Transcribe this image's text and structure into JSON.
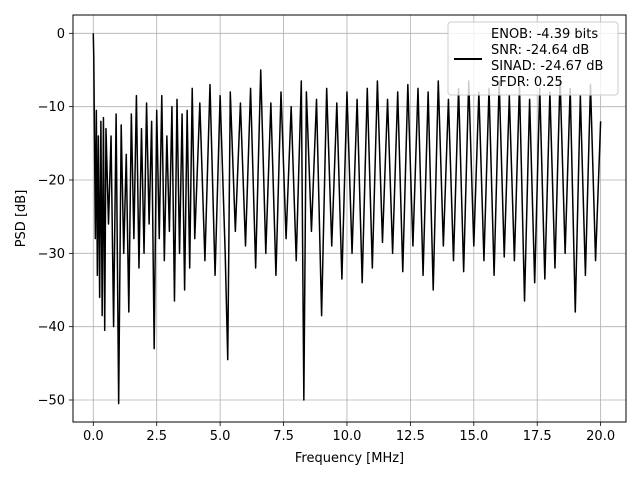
{
  "chart_data": {
    "type": "line",
    "title": "",
    "xlabel": "Frequency [MHz]",
    "ylabel": "PSD [dB]",
    "xlim": [
      -0.8,
      21.0
    ],
    "ylim": [
      -53.0,
      2.5
    ],
    "xticks": [
      0.0,
      2.5,
      5.0,
      7.5,
      10.0,
      12.5,
      15.0,
      17.5,
      20.0
    ],
    "xtick_labels": [
      "0.0",
      "2.5",
      "5.0",
      "7.5",
      "10.0",
      "12.5",
      "15.0",
      "17.5",
      "20.0"
    ],
    "yticks": [
      0,
      -10,
      -20,
      -30,
      -40,
      -50
    ],
    "ytick_labels": [
      "0",
      "−10",
      "−20",
      "−30",
      "−40",
      "−50"
    ],
    "grid": true,
    "legend_position": "top-right",
    "series": [
      {
        "name": "ENOB: -4.39 bits\nSNR: -24.64 dB\nSINAD: -24.67 dB\nSFDR: 0.25",
        "color": "#000000",
        "x": [
          0.0,
          0.02,
          0.05,
          0.08,
          0.12,
          0.16,
          0.2,
          0.25,
          0.3,
          0.35,
          0.4,
          0.45,
          0.5,
          0.6,
          0.7,
          0.8,
          0.9,
          1.0,
          1.1,
          1.2,
          1.3,
          1.4,
          1.5,
          1.6,
          1.7,
          1.8,
          1.9,
          2.0,
          2.1,
          2.2,
          2.3,
          2.4,
          2.5,
          2.6,
          2.7,
          2.8,
          2.9,
          3.0,
          3.1,
          3.2,
          3.3,
          3.4,
          3.5,
          3.6,
          3.7,
          3.8,
          3.9,
          4.0,
          4.2,
          4.4,
          4.6,
          4.8,
          5.0,
          5.2,
          5.3,
          5.4,
          5.6,
          5.8,
          6.0,
          6.2,
          6.4,
          6.6,
          6.8,
          7.0,
          7.2,
          7.4,
          7.6,
          7.8,
          8.0,
          8.2,
          8.3,
          8.4,
          8.6,
          8.8,
          9.0,
          9.2,
          9.4,
          9.6,
          9.8,
          10.0,
          10.2,
          10.4,
          10.6,
          10.8,
          11.0,
          11.2,
          11.4,
          11.6,
          11.8,
          12.0,
          12.2,
          12.4,
          12.6,
          12.8,
          13.0,
          13.2,
          13.4,
          13.6,
          13.8,
          14.0,
          14.2,
          14.4,
          14.6,
          14.8,
          15.0,
          15.2,
          15.4,
          15.6,
          15.8,
          16.0,
          16.2,
          16.4,
          16.6,
          16.8,
          17.0,
          17.2,
          17.4,
          17.6,
          17.8,
          18.0,
          18.2,
          18.4,
          18.6,
          18.8,
          19.0,
          19.2,
          19.4,
          19.6,
          19.8,
          20.0
        ],
        "y": [
          0.0,
          -3.5,
          -15.0,
          -28.0,
          -10.5,
          -33.0,
          -14.0,
          -36.0,
          -12.0,
          -38.5,
          -11.5,
          -40.5,
          -13.0,
          -26.0,
          -14.0,
          -40.0,
          -11.0,
          -50.5,
          -12.5,
          -30.0,
          -16.5,
          -38.0,
          -11.0,
          -28.0,
          -8.5,
          -32.0,
          -13.0,
          -30.0,
          -9.5,
          -26.0,
          -12.0,
          -43.0,
          -10.5,
          -28.0,
          -8.5,
          -31.0,
          -14.0,
          -27.0,
          -10.0,
          -36.5,
          -9.0,
          -30.0,
          -11.0,
          -35.0,
          -10.5,
          -32.0,
          -7.5,
          -28.0,
          -9.5,
          -31.0,
          -7.0,
          -33.0,
          -8.5,
          -30.0,
          -44.5,
          -8.0,
          -27.0,
          -9.5,
          -29.0,
          -7.5,
          -32.0,
          -5.0,
          -30.0,
          -9.5,
          -33.0,
          -8.0,
          -28.0,
          -10.0,
          -31.0,
          -6.5,
          -50.0,
          -8.0,
          -27.0,
          -9.0,
          -38.5,
          -7.5,
          -29.0,
          -9.5,
          -33.5,
          -8.0,
          -30.0,
          -9.0,
          -34.0,
          -7.5,
          -32.0,
          -6.5,
          -28.5,
          -9.0,
          -30.0,
          -8.0,
          -32.5,
          -7.0,
          -29.0,
          -7.5,
          -33.0,
          -8.0,
          -35.0,
          -6.5,
          -29.0,
          -9.0,
          -31.0,
          -7.5,
          -32.5,
          -6.5,
          -29.0,
          -8.0,
          -31.0,
          -7.5,
          -33.0,
          -6.5,
          -30.5,
          -8.5,
          -31.0,
          -7.0,
          -36.5,
          -9.0,
          -34.0,
          -7.5,
          -33.5,
          -8.0,
          -32.0,
          -6.0,
          -30.0,
          -7.5,
          -38.0,
          -8.5,
          -33.0,
          -7.0,
          -31.0,
          -12.0
        ]
      }
    ]
  }
}
